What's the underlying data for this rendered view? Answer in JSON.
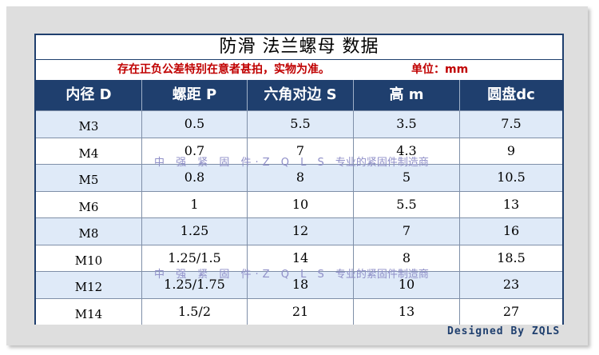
{
  "title": "防滑 法兰螺母 数据",
  "note": "存在正负公差特别在意者甚拍，实物为准。",
  "unit": "单位：mm",
  "headers": [
    "内径 D",
    "螺距 P",
    "六角对边 S",
    "高 m",
    "圆盘dc"
  ],
  "rows": [
    [
      "M3",
      "0.5",
      "5.5",
      "3.5",
      "7.5"
    ],
    [
      "M4",
      "0.7",
      "7",
      "4.3",
      "9"
    ],
    [
      "M5",
      "0.8",
      "8",
      "5",
      "10.5"
    ],
    [
      "M6",
      "1",
      "10",
      "5.5",
      "13"
    ],
    [
      "M8",
      "1.25",
      "12",
      "7",
      "16"
    ],
    [
      "M10",
      "1.25/1.5",
      "14",
      "8",
      "18.5"
    ],
    [
      "M12",
      "1.25/1.75",
      "18",
      "10",
      "23"
    ],
    [
      "M14",
      "1.5/2",
      "21",
      "13",
      "27"
    ]
  ],
  "watermark": {
    "lead": "中 强 紧 固 件·Z Q L S",
    "tail": "专业的紧固件制造商"
  },
  "signature": "Designed By ZQLS",
  "colors": {
    "header_bg": "#1f3f6e",
    "alt_row": "#dfeaf8",
    "note": "#c00000",
    "watermark": "#8f8fc8"
  }
}
